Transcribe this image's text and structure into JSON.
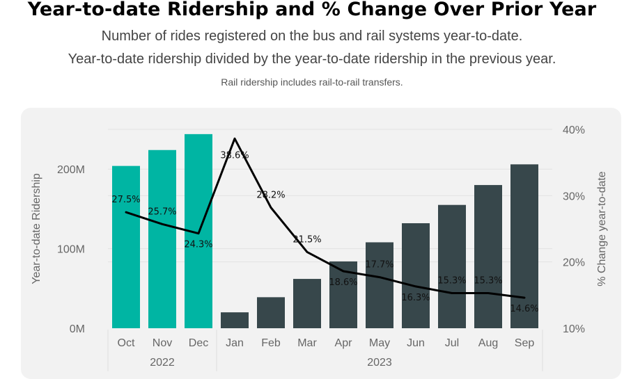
{
  "header": {
    "title": "Year-to-date Ridership and % Change Over Prior Year",
    "subtitle_1": "Number of rides registered on the bus and rail systems year-to-date.",
    "subtitle_2": "Year-to-date ridership divided by the year-to-date ridership in the previous year.",
    "note": "Rail ridership includes rail-to-rail transfers."
  },
  "colors": {
    "bar_2022": "#00b5a3",
    "bar_2023": "#37474b",
    "line": "#000000",
    "panel": "#f2f2f2",
    "grid": "#e2e2e2"
  },
  "chart_data": {
    "type": "bar",
    "categories": [
      "Oct",
      "Nov",
      "Dec",
      "Jan",
      "Feb",
      "Mar",
      "Apr",
      "May",
      "Jun",
      "Jul",
      "Aug",
      "Sep"
    ],
    "year_groups": [
      {
        "label": "2022",
        "months": [
          "Oct",
          "Nov",
          "Dec"
        ]
      },
      {
        "label": "2023",
        "months": [
          "Jan",
          "Feb",
          "Mar",
          "Apr",
          "May",
          "Jun",
          "Jul",
          "Aug",
          "Sep"
        ]
      }
    ],
    "series": [
      {
        "name": "Year-to-date Ridership",
        "type": "bar",
        "axis": "left",
        "values": [
          204,
          224,
          244,
          20,
          39,
          62,
          84,
          108,
          132,
          155,
          180,
          206
        ]
      },
      {
        "name": "% Change year-to-date",
        "type": "line",
        "axis": "right",
        "values": [
          27.5,
          25.7,
          24.3,
          38.6,
          28.2,
          21.5,
          18.6,
          17.7,
          16.3,
          15.3,
          15.3,
          14.6
        ],
        "labels": [
          "27.5%",
          "25.7%",
          "24.3%",
          "38.6%",
          "28.2%",
          "21.5%",
          "18.6%",
          "17.7%",
          "16.3%",
          "15.3%",
          "15.3%",
          "14.6%"
        ]
      }
    ],
    "ylabel": "Year-to-date Ridership",
    "ylabel_right": "% Change year-to-date",
    "ylim": [
      0,
      250
    ],
    "ylim_right": [
      10,
      40
    ],
    "yticks": [
      {
        "value": 0,
        "label": "0M"
      },
      {
        "value": 100,
        "label": "100M"
      },
      {
        "value": 200,
        "label": "200M"
      }
    ],
    "yticks_right": [
      {
        "value": 10,
        "label": "10%"
      },
      {
        "value": 20,
        "label": "20%"
      },
      {
        "value": 30,
        "label": "30%"
      },
      {
        "value": 40,
        "label": "40%"
      }
    ]
  }
}
